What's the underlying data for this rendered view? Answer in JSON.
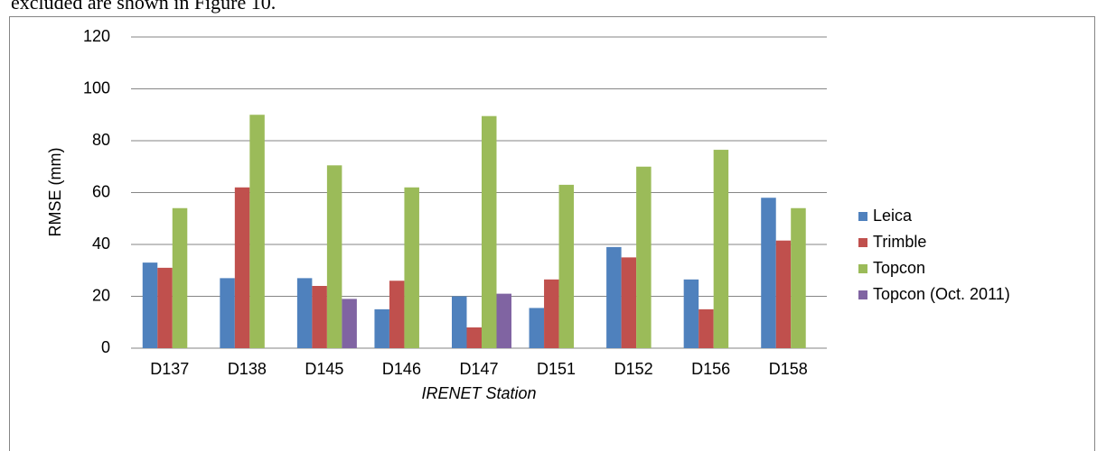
{
  "page_text": "excluded are shown in Figure 10.",
  "chart_data": {
    "type": "bar",
    "x_label": "IRENET Station",
    "y_label": "RMSE (mm)",
    "categories": [
      "D137",
      "D138",
      "D145",
      "D146",
      "D147",
      "D151",
      "D152",
      "D156",
      "D158"
    ],
    "series": [
      {
        "name": "Leica",
        "color": "#4f81bd",
        "values": [
          33,
          27,
          27,
          15,
          20,
          15.5,
          39,
          26.5,
          58
        ]
      },
      {
        "name": "Trimble",
        "color": "#c0504d",
        "values": [
          31,
          62,
          24,
          26,
          8,
          26.5,
          35,
          15,
          41.5
        ]
      },
      {
        "name": "Topcon",
        "color": "#9bbb59",
        "values": [
          54,
          90,
          70.5,
          62,
          89.5,
          63,
          70,
          76.5,
          54
        ]
      },
      {
        "name": "Topcon (Oct. 2011)",
        "color": "#8064a2",
        "values": [
          null,
          null,
          19,
          null,
          21,
          null,
          null,
          null,
          null
        ]
      }
    ],
    "ylim": [
      0,
      120
    ],
    "yticks": [
      0,
      20,
      40,
      60,
      80,
      100,
      120
    ],
    "grid": true,
    "legend": "right"
  }
}
